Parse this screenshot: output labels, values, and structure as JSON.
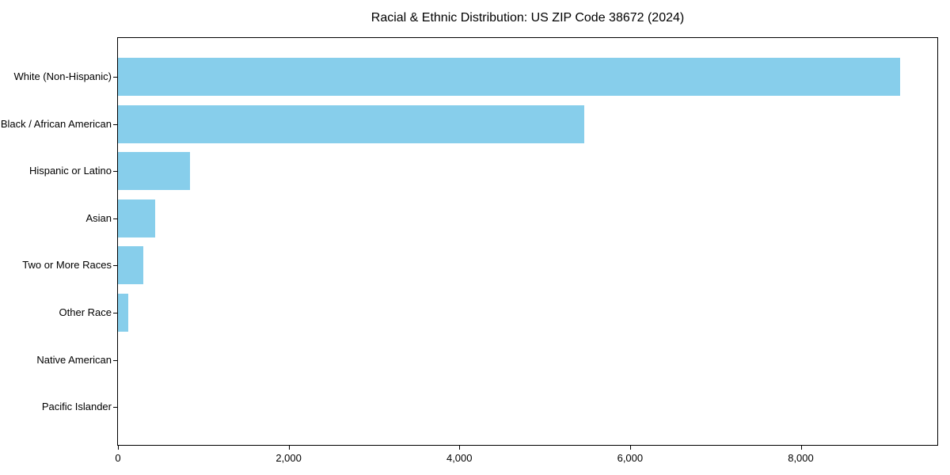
{
  "figure": {
    "background": "#ffffff"
  },
  "chart_data": {
    "type": "bar",
    "orientation": "horizontal",
    "title": "Racial & Ethnic Distribution: US ZIP Code 38672 (2024)",
    "categories": [
      "White (Non-Hispanic)",
      "Black / African American",
      "Hispanic or Latino",
      "Asian",
      "Two or More Races",
      "Other Race",
      "Native American",
      "Pacific Islander"
    ],
    "values": [
      9160,
      5465,
      840,
      435,
      295,
      125,
      0,
      0
    ],
    "xlabel": "",
    "ylabel": "",
    "xlim": [
      0,
      9600
    ],
    "xticks": {
      "values": [
        0,
        2000,
        4000,
        6000,
        8000
      ],
      "labels": [
        "0",
        "2,000",
        "4,000",
        "6,000",
        "8,000"
      ]
    },
    "bar_color": "#87CEEB",
    "axis_color": "#000000",
    "text_color": "#000000",
    "grid": false,
    "legend": "none"
  }
}
